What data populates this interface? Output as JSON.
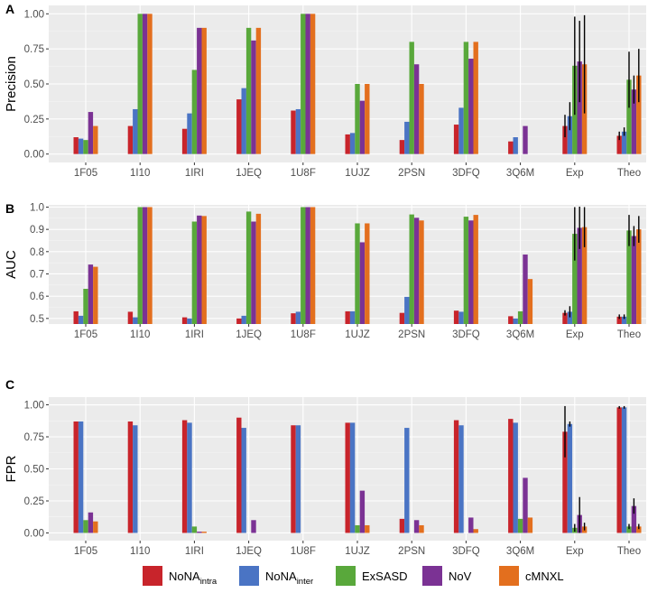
{
  "legend": [
    {
      "key": "intra",
      "label_main": "NoNA",
      "label_sub": "intra",
      "color": "#c8242b"
    },
    {
      "key": "inter",
      "label_main": "NoNA",
      "label_sub": "inter",
      "color": "#4a74c4"
    },
    {
      "key": "exsasd",
      "label_main": "ExSASD",
      "label_sub": "",
      "color": "#59a83b"
    },
    {
      "key": "nov",
      "label_main": "NoV",
      "label_sub": "",
      "color": "#7b3294"
    },
    {
      "key": "cmnxl",
      "label_main": "cMNXL",
      "label_sub": "",
      "color": "#e36f1e"
    }
  ],
  "chart_data": [
    {
      "panel": "A",
      "type": "bar",
      "ylabel": "Precision",
      "ylim": [
        -0.06,
        1.06
      ],
      "yticks": [
        0.0,
        0.25,
        0.5,
        0.75,
        1.0
      ],
      "ytick_labels": [
        "0.00",
        "0.25",
        "0.50",
        "0.75",
        "1.00"
      ],
      "grid": true,
      "categories": [
        "1F05",
        "1I10",
        "1IRI",
        "1JEQ",
        "1U8F",
        "1UJZ",
        "2PSN",
        "3DFQ",
        "3Q6M",
        "Exp",
        "Theo"
      ],
      "series": [
        {
          "name": "NoNA_intra",
          "values": [
            0.12,
            0.2,
            0.18,
            0.39,
            0.31,
            0.14,
            0.1,
            0.21,
            0.09,
            0.2,
            0.13
          ],
          "errors": [
            null,
            null,
            null,
            null,
            null,
            null,
            null,
            null,
            null,
            0.08,
            0.03
          ]
        },
        {
          "name": "NoNA_inter",
          "values": [
            0.11,
            0.32,
            0.29,
            0.47,
            0.32,
            0.15,
            0.23,
            0.33,
            0.12,
            0.27,
            0.16
          ],
          "errors": [
            null,
            null,
            null,
            null,
            null,
            null,
            null,
            null,
            null,
            0.1,
            0.03
          ]
        },
        {
          "name": "ExSASD",
          "values": [
            0.1,
            1.0,
            0.6,
            0.9,
            1.0,
            0.5,
            0.8,
            0.8,
            null,
            0.63,
            0.53
          ],
          "errors": [
            null,
            null,
            null,
            null,
            null,
            null,
            null,
            null,
            null,
            0.35,
            0.2
          ]
        },
        {
          "name": "NoV",
          "values": [
            0.3,
            1.0,
            0.9,
            0.81,
            1.0,
            0.38,
            0.64,
            0.68,
            0.2,
            0.66,
            0.46
          ],
          "errors": [
            null,
            null,
            null,
            null,
            null,
            null,
            null,
            null,
            null,
            0.29,
            0.1
          ]
        },
        {
          "name": "cMNXL",
          "values": [
            0.2,
            1.0,
            0.9,
            0.9,
            1.0,
            0.5,
            0.5,
            0.8,
            null,
            0.64,
            0.56
          ],
          "errors": [
            null,
            null,
            null,
            null,
            null,
            null,
            null,
            null,
            null,
            0.35,
            0.19
          ]
        }
      ]
    },
    {
      "panel": "B",
      "type": "bar",
      "ylabel": "AUC",
      "ylim": [
        0.475,
        1.01
      ],
      "yticks": [
        0.5,
        0.6,
        0.7,
        0.8,
        0.9,
        1.0
      ],
      "ytick_labels": [
        "0.5",
        "0.6",
        "0.7",
        "0.8",
        "0.9",
        "1.0"
      ],
      "grid": true,
      "categories": [
        "1F05",
        "1I10",
        "1IRI",
        "1JEQ",
        "1U8F",
        "1UJZ",
        "2PSN",
        "3DFQ",
        "3Q6M",
        "Exp",
        "Theo"
      ],
      "series": [
        {
          "name": "NoNA_intra",
          "values": [
            0.532,
            0.53,
            0.505,
            0.5,
            0.523,
            0.532,
            0.525,
            0.535,
            0.51,
            0.525,
            0.508
          ],
          "errors": [
            null,
            null,
            null,
            null,
            null,
            null,
            null,
            null,
            null,
            0.012,
            0.01
          ]
        },
        {
          "name": "NoNA_inter",
          "values": [
            0.512,
            0.505,
            0.5,
            0.512,
            0.53,
            0.532,
            0.597,
            0.53,
            0.5,
            0.53,
            0.508
          ],
          "errors": [
            null,
            null,
            null,
            null,
            null,
            null,
            null,
            null,
            null,
            0.025,
            0.01
          ]
        },
        {
          "name": "ExSASD",
          "values": [
            0.633,
            1.0,
            0.935,
            0.98,
            1.0,
            0.927,
            0.967,
            0.957,
            0.532,
            0.88,
            0.895
          ],
          "errors": [
            null,
            null,
            null,
            null,
            null,
            null,
            null,
            null,
            null,
            0.12,
            0.07
          ]
        },
        {
          "name": "NoV",
          "values": [
            0.742,
            1.0,
            0.962,
            0.935,
            1.0,
            0.842,
            0.952,
            0.94,
            0.787,
            0.907,
            0.87
          ],
          "errors": [
            null,
            null,
            null,
            null,
            null,
            null,
            null,
            null,
            null,
            0.095,
            0.045
          ]
        },
        {
          "name": "cMNXL",
          "values": [
            0.732,
            1.0,
            0.96,
            0.97,
            1.0,
            0.927,
            0.94,
            0.965,
            0.677,
            0.91,
            0.9
          ],
          "errors": [
            null,
            null,
            null,
            null,
            null,
            null,
            null,
            null,
            null,
            0.09,
            0.06
          ]
        }
      ]
    },
    {
      "panel": "C",
      "type": "bar",
      "ylabel": "FPR",
      "ylim": [
        -0.06,
        1.06
      ],
      "yticks": [
        0.0,
        0.25,
        0.5,
        0.75,
        1.0
      ],
      "ytick_labels": [
        "0.00",
        "0.25",
        "0.50",
        "0.75",
        "1.00"
      ],
      "grid": true,
      "categories": [
        "1F05",
        "1I10",
        "1IRI",
        "1JEQ",
        "1U8F",
        "1UJZ",
        "2PSN",
        "3DFQ",
        "3Q6M",
        "Exp",
        "Theo"
      ],
      "series": [
        {
          "name": "NoNA_intra",
          "values": [
            0.87,
            0.87,
            0.88,
            0.9,
            0.84,
            0.86,
            0.11,
            0.88,
            0.89,
            0.79,
            0.98
          ],
          "errors": [
            null,
            null,
            null,
            null,
            null,
            null,
            null,
            null,
            null,
            0.2,
            0.01
          ]
        },
        {
          "name": "NoNA_inter",
          "values": [
            0.87,
            0.84,
            0.86,
            0.82,
            0.84,
            0.86,
            0.82,
            0.84,
            0.86,
            0.85,
            0.98
          ],
          "errors": [
            null,
            null,
            null,
            null,
            null,
            null,
            null,
            null,
            null,
            0.02,
            0.01
          ]
        },
        {
          "name": "ExSASD",
          "values": [
            0.1,
            null,
            0.05,
            null,
            null,
            0.06,
            null,
            null,
            0.11,
            0.04,
            0.05
          ],
          "errors": [
            null,
            null,
            null,
            null,
            null,
            null,
            null,
            null,
            null,
            0.03,
            0.02
          ]
        },
        {
          "name": "NoV",
          "values": [
            0.16,
            null,
            0.01,
            0.1,
            null,
            0.33,
            0.1,
            0.12,
            0.43,
            0.14,
            0.21
          ],
          "errors": [
            null,
            null,
            null,
            null,
            null,
            null,
            null,
            null,
            null,
            0.14,
            0.06
          ]
        },
        {
          "name": "cMNXL",
          "values": [
            0.09,
            null,
            0.01,
            null,
            null,
            0.06,
            0.06,
            0.03,
            0.12,
            0.05,
            0.05
          ],
          "errors": [
            null,
            null,
            null,
            null,
            null,
            null,
            null,
            null,
            null,
            0.03,
            0.02
          ]
        }
      ]
    }
  ]
}
